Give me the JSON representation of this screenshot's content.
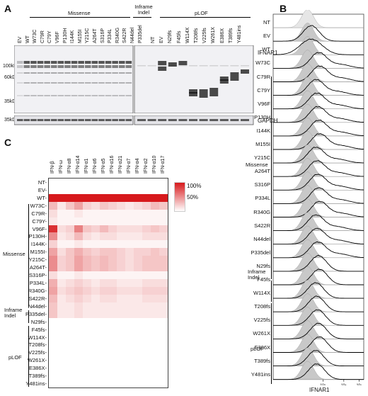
{
  "panel_labels": {
    "a": "A",
    "b": "B",
    "c": "C"
  },
  "panel_a": {
    "group_missense": "Missense",
    "group_inframe_indel": "Inframe Indel",
    "group_plof": "pLOF",
    "lanes_left": [
      "EV",
      "WT",
      "W73C",
      "C79R",
      "C79Y",
      "V96F",
      "P130H",
      "I144K",
      "M155I",
      "Y215C",
      "A264T",
      "S316P",
      "P334L",
      "R340G",
      "S422R",
      "N44del",
      "P335del"
    ],
    "lanes_right": [
      "NT",
      "EV",
      "N29fs",
      "F45fs",
      "W114X",
      "T208fs",
      "V225fs",
      "W261X",
      "E386X",
      "T389fs",
      "Y481ins"
    ],
    "markers": [
      "100kD",
      "60kD",
      "35kD"
    ],
    "gapdh_marker": "35kD",
    "protein_label": "IFNAR1",
    "loading_label": "GAPDH"
  },
  "panel_b": {
    "xlabel": "IFNAR1",
    "tick_labels": [
      "10³",
      "10⁴",
      "10⁵"
    ],
    "group_missense": "Missense",
    "group_inframe_indel": "Inframe Indel",
    "group_plof": "pLOF",
    "rows": [
      "NT",
      "EV",
      "WT",
      "W73C",
      "C79R",
      "C79Y",
      "V96F",
      "P130H",
      "I144K",
      "M155I",
      "Y215C",
      "A264T",
      "S316P",
      "P334L",
      "R340G",
      "S422R",
      "N44del",
      "P335del",
      "N29fs",
      "F45fs",
      "W114X",
      "T208fs",
      "V225fs",
      "W261X",
      "E386X",
      "T389fs",
      "Y481ins"
    ],
    "colors": {
      "fill": "#c8c8c8",
      "stroke": "#000000",
      "nt_fill": "#e6e6e6"
    }
  },
  "panel_c": {
    "columns": [
      "IFN-β",
      "IFN-ω",
      "IFN-α8",
      "IFN-α14",
      "IFN-α1",
      "IFN-α6",
      "IFN-α5",
      "IFN-α16",
      "IFN-α21",
      "IFN-α7",
      "IFN-α4",
      "IFN-α2",
      "IFN-α10",
      "IFN-α17"
    ],
    "rows": [
      "NT",
      "EV",
      "WT",
      "W73C",
      "C79R",
      "C79Y",
      "V96F",
      "P130H",
      "I144K",
      "M155I",
      "Y215C",
      "A264T",
      "S316P",
      "P334L",
      "R340G",
      "S422R",
      "N44del",
      "P335del",
      "N29fs",
      "F45fs",
      "W114X",
      "T208fs",
      "V225fs",
      "W261X",
      "E386X",
      "T389fs",
      "Y481ins"
    ],
    "group_missense": "Missense",
    "group_inframe_indel": "Inframe Indel",
    "group_plof": "pLOF",
    "legend_high": "100%",
    "legend_mid": "50%",
    "colors": {
      "high": "#d7191c",
      "low": "#ffffff"
    },
    "chart_data": {
      "type": "heatmap",
      "values": [
        [
          0,
          0,
          0,
          0,
          0,
          0,
          0,
          0,
          0,
          0,
          0,
          0,
          0,
          0
        ],
        [
          0,
          0,
          0,
          0,
          0,
          0,
          0,
          0,
          0,
          0,
          0,
          0,
          0,
          0
        ],
        [
          100,
          100,
          100,
          100,
          100,
          100,
          100,
          100,
          100,
          100,
          100,
          100,
          100,
          100
        ],
        [
          30,
          10,
          25,
          40,
          20,
          15,
          25,
          20,
          15,
          10,
          15,
          20,
          30,
          25
        ],
        [
          15,
          5,
          5,
          10,
          5,
          5,
          5,
          5,
          5,
          5,
          5,
          5,
          5,
          5
        ],
        [
          10,
          5,
          5,
          5,
          5,
          5,
          5,
          5,
          5,
          5,
          5,
          5,
          5,
          5
        ],
        [
          90,
          15,
          20,
          55,
          25,
          20,
          30,
          20,
          15,
          15,
          15,
          20,
          25,
          20
        ],
        [
          50,
          10,
          15,
          30,
          15,
          10,
          15,
          15,
          10,
          10,
          10,
          15,
          15,
          15
        ],
        [
          20,
          5,
          5,
          10,
          5,
          5,
          5,
          5,
          5,
          5,
          5,
          5,
          5,
          5
        ],
        [
          40,
          15,
          25,
          35,
          25,
          20,
          25,
          25,
          20,
          15,
          20,
          20,
          25,
          20
        ],
        [
          50,
          20,
          25,
          40,
          30,
          25,
          30,
          25,
          20,
          15,
          20,
          25,
          25,
          25
        ],
        [
          50,
          20,
          25,
          40,
          30,
          25,
          30,
          25,
          20,
          15,
          20,
          25,
          25,
          25
        ],
        [
          15,
          5,
          5,
          10,
          5,
          5,
          5,
          5,
          5,
          5,
          5,
          5,
          5,
          5
        ],
        [
          35,
          10,
          15,
          20,
          15,
          10,
          15,
          15,
          10,
          10,
          10,
          15,
          15,
          15
        ],
        [
          40,
          15,
          20,
          25,
          20,
          15,
          20,
          20,
          15,
          15,
          15,
          20,
          20,
          20
        ],
        [
          30,
          10,
          15,
          20,
          15,
          10,
          15,
          15,
          10,
          10,
          10,
          15,
          15,
          15
        ],
        [
          25,
          10,
          10,
          15,
          10,
          10,
          10,
          10,
          10,
          10,
          10,
          10,
          10,
          10
        ],
        [
          25,
          10,
          10,
          15,
          10,
          10,
          10,
          10,
          10,
          10,
          10,
          10,
          10,
          10
        ],
        [
          0,
          0,
          0,
          0,
          0,
          0,
          0,
          0,
          0,
          0,
          0,
          0,
          0,
          0
        ],
        [
          0,
          0,
          0,
          0,
          0,
          0,
          0,
          0,
          0,
          0,
          0,
          0,
          0,
          0
        ],
        [
          0,
          0,
          0,
          0,
          0,
          0,
          0,
          0,
          0,
          0,
          0,
          0,
          0,
          0
        ],
        [
          0,
          0,
          0,
          0,
          0,
          0,
          0,
          0,
          0,
          0,
          0,
          0,
          0,
          0
        ],
        [
          0,
          0,
          0,
          0,
          0,
          0,
          0,
          0,
          0,
          0,
          0,
          0,
          0,
          0
        ],
        [
          0,
          0,
          0,
          0,
          0,
          0,
          0,
          0,
          0,
          0,
          0,
          0,
          0,
          0
        ],
        [
          0,
          0,
          0,
          0,
          0,
          0,
          0,
          0,
          0,
          0,
          0,
          0,
          0,
          0
        ],
        [
          0,
          0,
          0,
          0,
          0,
          0,
          0,
          0,
          0,
          0,
          0,
          0,
          0,
          0
        ],
        [
          0,
          0,
          0,
          0,
          0,
          0,
          0,
          0,
          0,
          0,
          0,
          0,
          0,
          0
        ]
      ],
      "scale": [
        0,
        100
      ]
    }
  }
}
